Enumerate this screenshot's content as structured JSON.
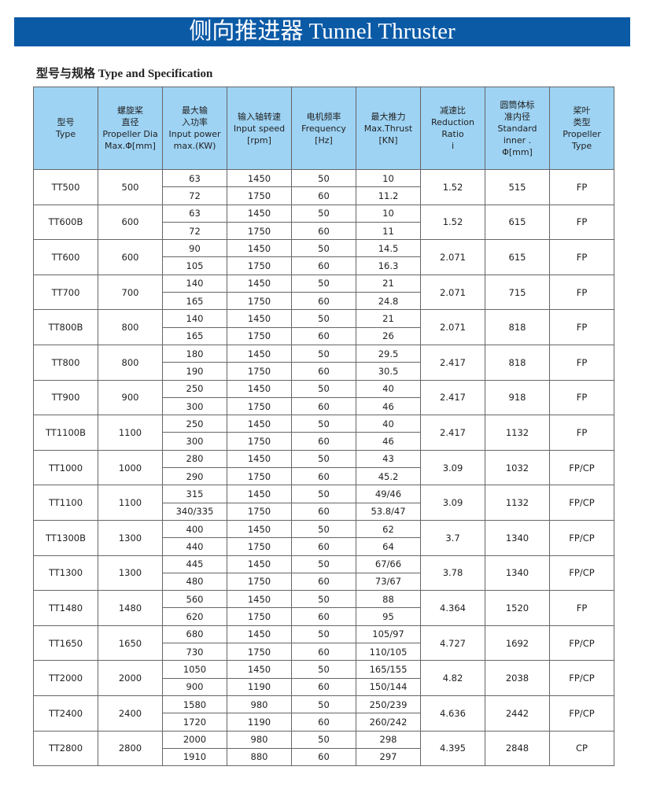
{
  "title": "侧向推进器 Tunnel Thruster",
  "subtitle": "型号与规格 Type and Specification",
  "headers": [
    [
      "型号",
      "Type"
    ],
    [
      "螺旋桨",
      "直径",
      "Propeller Dia",
      "Max.Φ[mm]"
    ],
    [
      "最大输",
      "入功率",
      "Input power",
      "max.(KW)"
    ],
    [
      "输入轴转速",
      "Input speed",
      "[rpm]"
    ],
    [
      "电机频率",
      "Frequency",
      "[Hz]"
    ],
    [
      "最大推力",
      "Max.Thrust",
      "[KN]"
    ],
    [
      "减速比",
      "Reduction",
      "Ratio",
      "i"
    ],
    [
      "圆筒体标",
      "准内径",
      "Standard",
      "inner .",
      "Φ[mm]"
    ],
    [
      "桨叶",
      "类型",
      "Propeller",
      "Type"
    ]
  ],
  "rows": [
    {
      "type": "TT500",
      "dia": "500",
      "power": [
        "63",
        "72"
      ],
      "speed": [
        "1450",
        "1750"
      ],
      "freq": [
        "50",
        "60"
      ],
      "thrust": [
        "10",
        "11.2"
      ],
      "ratio": "1.52",
      "inner": "515",
      "ptype": "FP"
    },
    {
      "type": "TT600B",
      "dia": "600",
      "power": [
        "63",
        "72"
      ],
      "speed": [
        "1450",
        "1750"
      ],
      "freq": [
        "50",
        "60"
      ],
      "thrust": [
        "10",
        "11"
      ],
      "ratio": "1.52",
      "inner": "615",
      "ptype": "FP"
    },
    {
      "type": "TT600",
      "dia": "600",
      "power": [
        "90",
        "105"
      ],
      "speed": [
        "1450",
        "1750"
      ],
      "freq": [
        "50",
        "60"
      ],
      "thrust": [
        "14.5",
        "16.3"
      ],
      "ratio": "2.071",
      "inner": "615",
      "ptype": "FP"
    },
    {
      "type": "TT700",
      "dia": "700",
      "power": [
        "140",
        "165"
      ],
      "speed": [
        "1450",
        "1750"
      ],
      "freq": [
        "50",
        "60"
      ],
      "thrust": [
        "21",
        "24.8"
      ],
      "ratio": "2.071",
      "inner": "715",
      "ptype": "FP"
    },
    {
      "type": "TT800B",
      "dia": "800",
      "power": [
        "140",
        "165"
      ],
      "speed": [
        "1450",
        "1750"
      ],
      "freq": [
        "50",
        "60"
      ],
      "thrust": [
        "21",
        "26"
      ],
      "ratio": "2.071",
      "inner": "818",
      "ptype": "FP"
    },
    {
      "type": "TT800",
      "dia": "800",
      "power": [
        "180",
        "190"
      ],
      "speed": [
        "1450",
        "1750"
      ],
      "freq": [
        "50",
        "60"
      ],
      "thrust": [
        "29.5",
        "30.5"
      ],
      "ratio": "2.417",
      "inner": "818",
      "ptype": "FP"
    },
    {
      "type": "TT900",
      "dia": "900",
      "power": [
        "250",
        "300"
      ],
      "speed": [
        "1450",
        "1750"
      ],
      "freq": [
        "50",
        "60"
      ],
      "thrust": [
        "40",
        "46"
      ],
      "ratio": "2.417",
      "inner": "918",
      "ptype": "FP"
    },
    {
      "type": "TT1100B",
      "dia": "1100",
      "power": [
        "250",
        "300"
      ],
      "speed": [
        "1450",
        "1750"
      ],
      "freq": [
        "50",
        "60"
      ],
      "thrust": [
        "40",
        "46"
      ],
      "ratio": "2.417",
      "inner": "1132",
      "ptype": "FP"
    },
    {
      "type": "TT1000",
      "dia": "1000",
      "power": [
        "280",
        "290"
      ],
      "speed": [
        "1450",
        "1750"
      ],
      "freq": [
        "50",
        "60"
      ],
      "thrust": [
        "43",
        "45.2"
      ],
      "ratio": "3.09",
      "inner": "1032",
      "ptype": "FP/CP"
    },
    {
      "type": "TT1100",
      "dia": "1100",
      "power": [
        "315",
        "340/335"
      ],
      "speed": [
        "1450",
        "1750"
      ],
      "freq": [
        "50",
        "60"
      ],
      "thrust": [
        "49/46",
        "53.8/47"
      ],
      "ratio": "3.09",
      "inner": "1132",
      "ptype": "FP/CP"
    },
    {
      "type": "TT1300B",
      "dia": "1300",
      "power": [
        "400",
        "440"
      ],
      "speed": [
        "1450",
        "1750"
      ],
      "freq": [
        "50",
        "60"
      ],
      "thrust": [
        "62",
        "64"
      ],
      "ratio": "3.7",
      "inner": "1340",
      "ptype": "FP/CP"
    },
    {
      "type": "TT1300",
      "dia": "1300",
      "power": [
        "445",
        "480"
      ],
      "speed": [
        "1450",
        "1750"
      ],
      "freq": [
        "50",
        "60"
      ],
      "thrust": [
        "67/66",
        "73/67"
      ],
      "ratio": "3.78",
      "inner": "1340",
      "ptype": "FP/CP"
    },
    {
      "type": "TT1480",
      "dia": "1480",
      "power": [
        "560",
        "620"
      ],
      "speed": [
        "1450",
        "1750"
      ],
      "freq": [
        "50",
        "60"
      ],
      "thrust": [
        "88",
        "95"
      ],
      "ratio": "4.364",
      "inner": "1520",
      "ptype": "FP"
    },
    {
      "type": "TT1650",
      "dia": "1650",
      "power": [
        "680",
        "730"
      ],
      "speed": [
        "1450",
        "1750"
      ],
      "freq": [
        "50",
        "60"
      ],
      "thrust": [
        "105/97",
        "110/105"
      ],
      "ratio": "4.727",
      "inner": "1692",
      "ptype": "FP/CP"
    },
    {
      "type": "TT2000",
      "dia": "2000",
      "power": [
        "1050",
        "900"
      ],
      "speed": [
        "1450",
        "1190"
      ],
      "freq": [
        "50",
        "60"
      ],
      "thrust": [
        "165/155",
        "150/144"
      ],
      "ratio": "4.82",
      "inner": "2038",
      "ptype": "FP/CP"
    },
    {
      "type": "TT2400",
      "dia": "2400",
      "power": [
        "1580",
        "1720"
      ],
      "speed": [
        "980",
        "1190"
      ],
      "freq": [
        "50",
        "60"
      ],
      "thrust": [
        "250/239",
        "260/242"
      ],
      "ratio": "4.636",
      "inner": "2442",
      "ptype": "FP/CP"
    },
    {
      "type": "TT2800",
      "dia": "2800",
      "power": [
        "2000",
        "1910"
      ],
      "speed": [
        "980",
        "880"
      ],
      "freq": [
        "50",
        "60"
      ],
      "thrust": [
        "298",
        "297"
      ],
      "ratio": "4.395",
      "inner": "2848",
      "ptype": "CP"
    }
  ]
}
